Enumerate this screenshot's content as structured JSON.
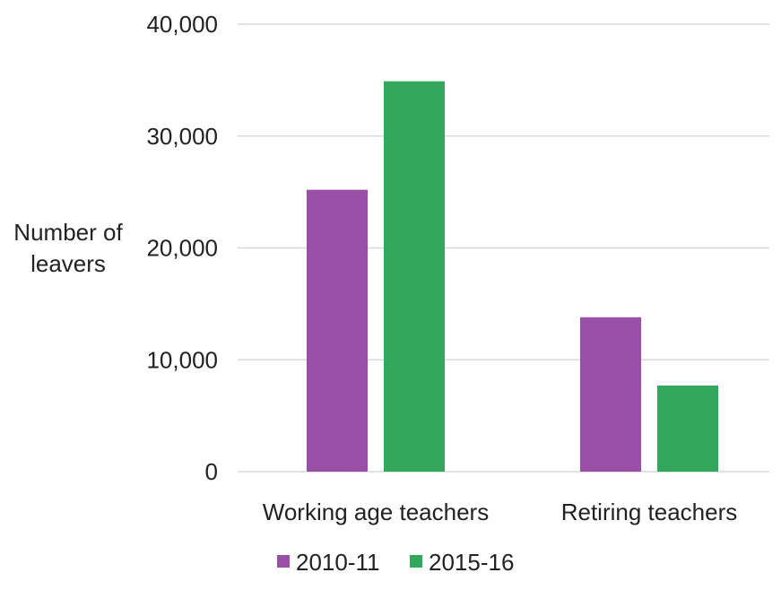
{
  "chart_data": {
    "type": "bar",
    "ylabel": "Number of leavers",
    "ylabel_lines": [
      "Number of",
      "leavers"
    ],
    "categories": [
      "Working age teachers",
      "Retiring teachers"
    ],
    "series": [
      {
        "name": "2010-11",
        "values": [
          25200,
          13800
        ],
        "color": "#9a4fa6"
      },
      {
        "name": "2015-16",
        "values": [
          34900,
          7700
        ],
        "color": "#33a85c"
      }
    ],
    "ylim": [
      0,
      40000
    ],
    "yticks": [
      0,
      10000,
      20000,
      30000,
      40000
    ],
    "ytick_labels": [
      "0",
      "10,000",
      "20,000",
      "30,000",
      "40,000"
    ],
    "grid": true,
    "gridline_color": "#d9d9d9",
    "legend_position": "bottom"
  }
}
